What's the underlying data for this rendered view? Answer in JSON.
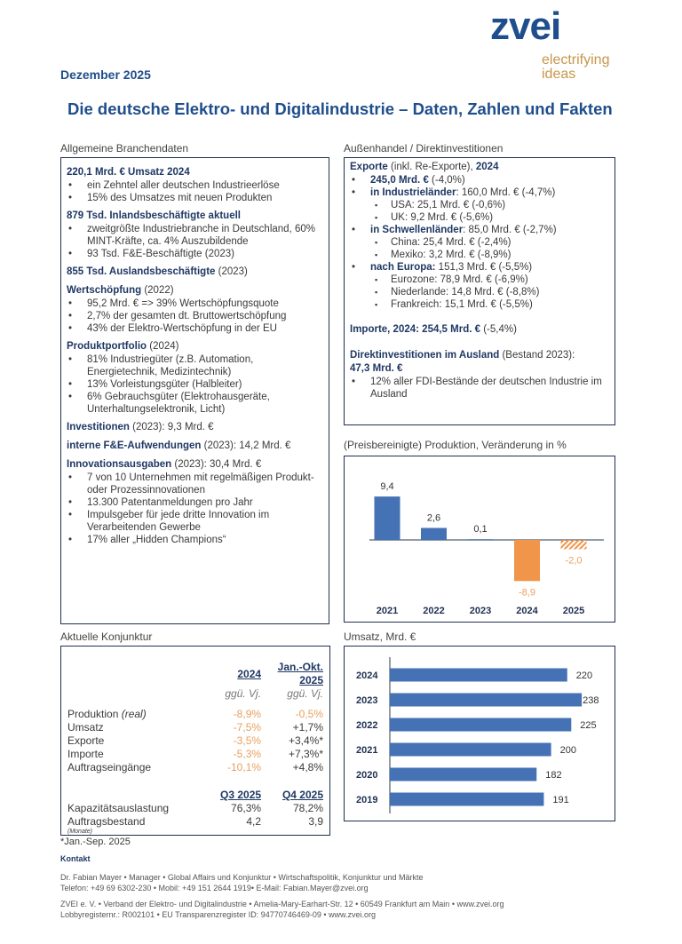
{
  "logo": {
    "name": "zvei",
    "tagline1": "electrifying",
    "tagline2": "ideas"
  },
  "date": "Dezember 2025",
  "title": "Die deutsche Elektro- und Digitalindustrie – Daten, Zahlen und Fakten",
  "left": {
    "section": "Allgemeine Branchendaten",
    "blocks": [
      {
        "b": "220,1 Mrd. € Umsatz 2024",
        "n": "",
        "items": [
          "ein Zehntel aller deutschen Industrieerlöse",
          "15% des Umsatzes mit neuen Produkten"
        ]
      },
      {
        "b": "879 Tsd. Inlandsbeschäftigte aktuell",
        "n": "",
        "items": [
          "zweitgrößte Industriebranche in Deutschland, 60% MINT-Kräfte, ca. 4% Auszubildende",
          "93 Tsd. F&E-Beschäftigte (2023)"
        ]
      },
      {
        "b": "855 Tsd. Auslandsbeschäftigte",
        "n": " (2023)",
        "items": []
      },
      {
        "b": "Wertschöpfung",
        "n": " (2022)",
        "items": [
          "95,2 Mrd. € => 39% Wertschöpfungsquote",
          "2,7% der gesamten dt. Bruttowertschöpfung",
          "43% der Elektro-Wertschöpfung in der EU"
        ]
      },
      {
        "b": "Produktportfolio",
        "n": " (2024)",
        "items": [
          "81% Industriegüter (z.B. Automation, Energietechnik, Medizintechnik)",
          "13% Vorleistungsgüter (Halbleiter)",
          "6% Gebrauchsgüter (Elektrohausgeräte, Unterhaltungselektronik, Licht)"
        ]
      },
      {
        "b": "Investitionen",
        "n": " (2023): 9,3 Mrd. €",
        "items": []
      },
      {
        "b": "interne F&E-Aufwendungen",
        "n": " (2023): 14,2 Mrd. €",
        "items": []
      },
      {
        "b": "Innovationsausgaben",
        "n": " (2023): 30,4 Mrd. €",
        "items": [
          "7 von 10 Unternehmen mit regelmäßigen Produkt- oder Prozessinnovationen",
          "13.300 Patentanmeldungen pro Jahr",
          "Impulsgeber für jede dritte Innovation im Verarbeitenden Gewerbe",
          "17% aller „Hidden Champions“"
        ]
      }
    ]
  },
  "right": {
    "section": "Außenhandel / Direktinvestitionen",
    "exp_b": "Exporte",
    "exp_n": " (inkl. Re-Exporte), ",
    "exp_y": "2024",
    "lines": [
      {
        "lvl": 1,
        "b": "245,0 Mrd. €",
        "n": " (-4,0%)"
      },
      {
        "lvl": 1,
        "b": "in Industrieländer",
        "n": ": 160,0 Mrd. € (-4,7%)"
      },
      {
        "lvl": 2,
        "b": "",
        "n": "USA: 25,1 Mrd. € (-0,6%)"
      },
      {
        "lvl": 2,
        "b": "",
        "n": "UK: 9,2 Mrd. € (-5,6%)"
      },
      {
        "lvl": 1,
        "b": "in Schwellenländer",
        "n": ": 85,0 Mrd. € (-2,7%)"
      },
      {
        "lvl": 2,
        "b": "",
        "n": "China: 25,4 Mrd. € (-2,4%)"
      },
      {
        "lvl": 2,
        "b": "",
        "n": "Mexiko: 3,2 Mrd. € (-8,9%)"
      },
      {
        "lvl": 1,
        "b": "nach Europa:",
        "n": " 151,3 Mrd. € (-5,5%)"
      },
      {
        "lvl": 2,
        "b": "",
        "n": "Eurozone: 78,9 Mrd. € (-6,9%)"
      },
      {
        "lvl": 2,
        "b": "",
        "n": "Niederlande: 14,8 Mrd. € (-8,8%)"
      },
      {
        "lvl": 2,
        "b": "",
        "n": "Frankreich: 15,1 Mrd. € (-5,5%)"
      }
    ],
    "imp_b": "Importe, 2024: 254,5 Mrd. €",
    "imp_n": " (-5,4%)",
    "fdi_b": "Direktinvestitionen im Ausland",
    "fdi_n": " (Bestand 2023):",
    "fdi_v": "47,3 Mrd. €",
    "fdi_item": "12% aller FDI-Bestände der deutschen Industrie im Ausland"
  },
  "konjunktur": {
    "section": "Aktuelle Konjunktur",
    "col1": "2024",
    "col2a": "Jan.-Okt.",
    "col2b": "2025",
    "sub": "ggü. Vj.",
    "rows": [
      {
        "label": "Produktion",
        "label_i": " (real)",
        "v1": "-8,9%",
        "v2": "-0,5%",
        "v2o": true
      },
      {
        "label": "Umsatz",
        "label_i": "",
        "v1": "-7,5%",
        "v2": "+1,7%",
        "v2o": false
      },
      {
        "label": "Exporte",
        "label_i": "",
        "v1": "-3,5%",
        "v2": "+3,4%*",
        "v2o": false
      },
      {
        "label": "Importe",
        "label_i": "",
        "v1": "-5,3%",
        "v2": "+7,3%*",
        "v2o": false
      },
      {
        "label": "Auftragseingänge",
        "label_i": "",
        "v1": "-10,1%",
        "v2": "+4,8%",
        "v2o": false
      }
    ],
    "q1": "Q3 2025",
    "q2": "Q4 2025",
    "rows2": [
      {
        "label": "Kapazitätsauslastung",
        "v1": "76,3%",
        "v2": "78,2%"
      },
      {
        "label": "Auftragsbestand",
        "v1": "4,2",
        "v2": "3,9"
      }
    ],
    "monate": "(Monate)",
    "footnote": "*Jan.-Sep. 2025"
  },
  "chart_data": [
    {
      "type": "bar",
      "title": "(Preisbereinigte) Produktion, Veränderung in %",
      "categories": [
        "2021",
        "2022",
        "2023",
        "2024",
        "2025"
      ],
      "values": [
        9.4,
        2.6,
        0.1,
        -8.9,
        -2.0
      ],
      "labels": [
        "9,4",
        "2,6",
        "0,1",
        "-8,9",
        "-2,0"
      ],
      "colors": [
        "#4472b4",
        "#4472b4",
        "#4472b4",
        "#f0954a",
        "hatched-orange"
      ]
    },
    {
      "type": "bar",
      "orientation": "horizontal",
      "title": "Umsatz, Mrd. €",
      "categories": [
        "2024",
        "2023",
        "2022",
        "2021",
        "2020",
        "2019"
      ],
      "values": [
        220,
        238,
        225,
        200,
        182,
        191
      ],
      "color": "#4472b4"
    }
  ],
  "footer": {
    "kontakt": "Kontakt",
    "line1": "Dr. Fabian Mayer • Manager • Global Affairs und Konjunktur • Wirtschaftspolitik, Konjunktur und Märkte",
    "line2": "Telefon: +49 69 6302-230  • Mobil: +49 151 2644 1919• E-Mail: Fabian.Mayer@zvei.org",
    "line3": "ZVEI e. V. • Verband der Elektro- und Digitalindustrie • Amelia-Mary-Earhart-Str. 12 • 60549 Frankfurt am Main • www.zvei.org",
    "line4": "Lobbyregisternr.: R002101 • EU Transparenzregister ID: 94770746469-09 • www.zvei.org"
  }
}
